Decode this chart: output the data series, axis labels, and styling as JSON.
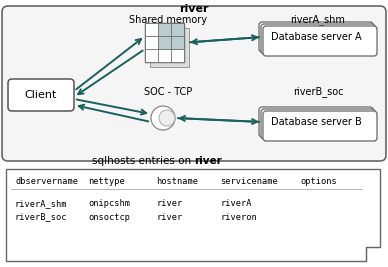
{
  "title_river": "river",
  "label_shared_memory": "Shared memory",
  "label_riverA_shm": "riverA_shm",
  "label_riverB_soc": "riverB_soc",
  "label_soc_tcp": "SOC - TCP",
  "label_client": "Client",
  "label_db_server_A": "Database server A",
  "label_db_server_B": "Database server B",
  "table_title_normal": "sqlhosts entries on ",
  "table_title_bold": "river",
  "col_headers": [
    "dbservername",
    "nettype",
    "hostname",
    "servicename",
    "options"
  ],
  "row1": [
    "riverA_shm",
    "onipcshm",
    "river",
    "riverA",
    ""
  ],
  "row2": [
    "riverB_soc",
    "onsoctcp",
    "river",
    "riveron",
    ""
  ],
  "bg_color": "#ffffff",
  "arrow_color": "#1a6060",
  "grid_fill": "#b8cece",
  "outer_box_edge": "#666666",
  "outer_box_bg": "#f5f5f5"
}
